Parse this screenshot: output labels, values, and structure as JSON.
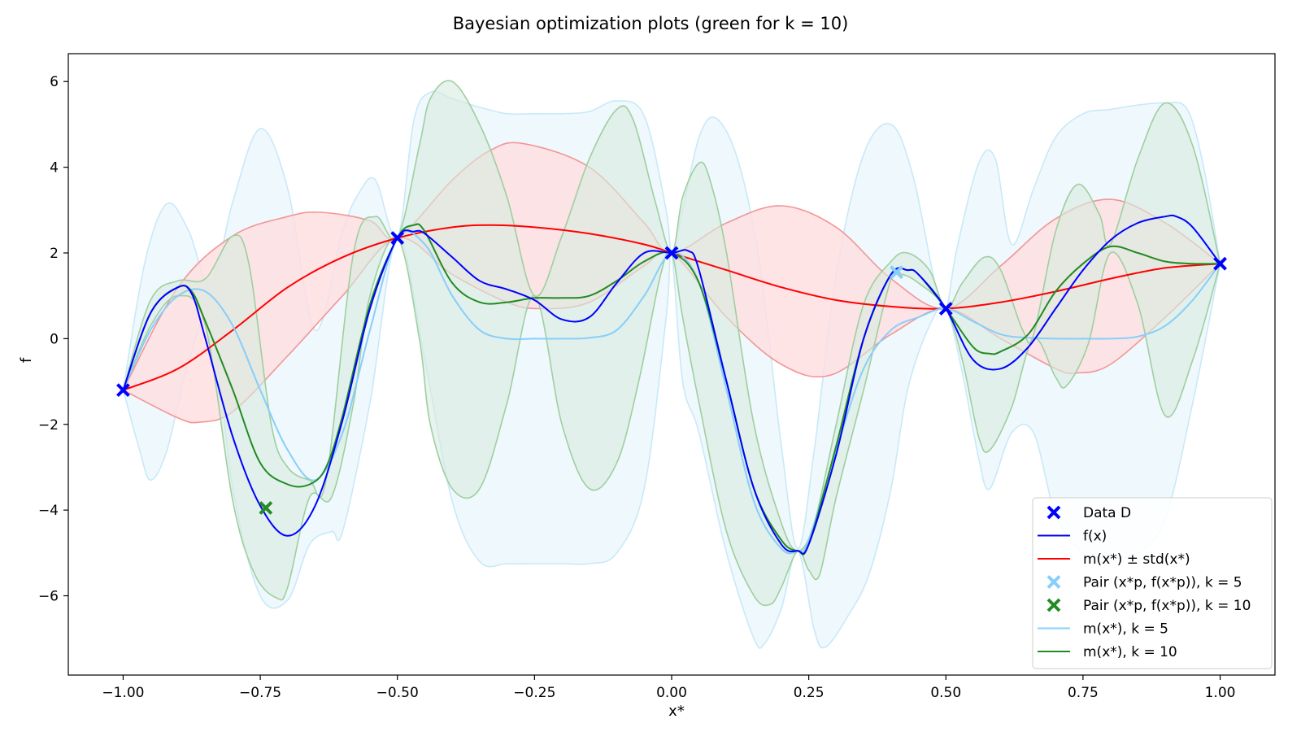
{
  "chart_data": {
    "type": "line",
    "title": "Bayesian optimization plots (green for k = 10)",
    "xlabel": "x*",
    "ylabel": "f",
    "xlim": [
      -1.1,
      1.1
    ],
    "ylim": [
      -7.85,
      6.65
    ],
    "xticks": [
      -1.0,
      -0.75,
      -0.5,
      -0.25,
      0.0,
      0.25,
      0.5,
      0.75,
      1.0
    ],
    "xtick_labels": [
      "−1.00",
      "−0.75",
      "−0.50",
      "−0.25",
      "0.00",
      "0.25",
      "0.50",
      "0.75",
      "1.00"
    ],
    "yticks": [
      -6,
      -4,
      -2,
      0,
      2,
      4,
      6
    ],
    "ytick_labels": [
      "−6",
      "−4",
      "−2",
      "0",
      "2",
      "4",
      "6"
    ],
    "grid": false,
    "legend_position": "bottom-right",
    "colors": {
      "data": "#0000ff",
      "f": "#0000ff",
      "mean": "#ff0000",
      "band": "#ffdde0",
      "band_edge": "#f08080",
      "k5": "#87cefa",
      "k5_band": "#eaf6fc",
      "k5_edge": "#c9e9f8",
      "k10": "#228b22",
      "k10_band": "#d7ebe0",
      "k10_edge": "#9fcf9f"
    },
    "data_points": {
      "name": "Data D",
      "x": [
        -1.0,
        -0.5,
        0.0,
        0.5,
        1.0
      ],
      "y": [
        -1.2,
        2.35,
        2.0,
        0.7,
        1.75
      ]
    },
    "pair_k5": {
      "name": "Pair (x*p, f(x*p)), k = 5",
      "x": [
        0.41
      ],
      "y": [
        1.55
      ]
    },
    "pair_k10": {
      "name": "Pair (x*p, f(x*p)), k = 10",
      "x": [
        -0.74
      ],
      "y": [
        -3.95
      ]
    },
    "series": [
      {
        "id": "f",
        "name": "f(x)",
        "x": [
          -1.0,
          -0.95,
          -0.9,
          -0.875,
          -0.85,
          -0.8,
          -0.75,
          -0.7,
          -0.65,
          -0.6,
          -0.55,
          -0.5,
          -0.47,
          -0.45,
          -0.4,
          -0.35,
          -0.3,
          -0.25,
          -0.2,
          -0.15,
          -0.1,
          -0.05,
          0.0,
          0.03,
          0.05,
          0.1,
          0.15,
          0.2,
          0.23,
          0.25,
          0.3,
          0.35,
          0.4,
          0.43,
          0.45,
          0.5,
          0.55,
          0.6,
          0.65,
          0.7,
          0.75,
          0.8,
          0.85,
          0.9,
          0.92,
          0.95,
          1.0
        ],
        "y": [
          -1.2,
          0.6,
          1.2,
          1.05,
          0.0,
          -2.3,
          -3.9,
          -4.6,
          -3.9,
          -1.9,
          0.7,
          2.35,
          2.5,
          2.45,
          1.9,
          1.35,
          1.15,
          0.9,
          0.45,
          0.5,
          1.3,
          2.0,
          2.0,
          2.05,
          1.6,
          -1.0,
          -3.5,
          -4.8,
          -4.95,
          -4.8,
          -2.7,
          0.0,
          1.5,
          1.6,
          1.5,
          0.7,
          -0.5,
          -0.7,
          -0.2,
          0.7,
          1.6,
          2.3,
          2.7,
          2.85,
          2.85,
          2.6,
          1.75
        ]
      },
      {
        "id": "mean",
        "name": "m(x*) ± std(x*)",
        "x": [
          -1.0,
          -0.9,
          -0.8,
          -0.7,
          -0.6,
          -0.5,
          -0.4,
          -0.33,
          -0.25,
          -0.15,
          -0.05,
          0.0,
          0.1,
          0.2,
          0.3,
          0.4,
          0.5,
          0.6,
          0.7,
          0.8,
          0.9,
          1.0
        ],
        "y": [
          -1.2,
          -0.7,
          0.2,
          1.2,
          1.9,
          2.35,
          2.6,
          2.65,
          2.6,
          2.45,
          2.2,
          2.0,
          1.6,
          1.2,
          0.9,
          0.75,
          0.7,
          0.85,
          1.1,
          1.4,
          1.65,
          1.75
        ]
      },
      {
        "id": "mean_upper",
        "x": [
          -1.0,
          -0.9,
          -0.8,
          -0.7,
          -0.64,
          -0.55,
          -0.5,
          -0.4,
          -0.33,
          -0.27,
          -0.15,
          -0.05,
          0.0,
          0.1,
          0.2,
          0.3,
          0.4,
          0.5,
          0.6,
          0.7,
          0.8,
          0.9,
          1.0
        ],
        "y": [
          -1.2,
          1.2,
          2.4,
          2.85,
          2.95,
          2.75,
          2.35,
          3.7,
          4.4,
          4.55,
          4.0,
          2.7,
          2.0,
          2.7,
          3.1,
          2.6,
          1.4,
          0.7,
          1.7,
          2.8,
          3.25,
          2.7,
          1.75
        ]
      },
      {
        "id": "mean_lower",
        "x": [
          -1.0,
          -0.9,
          -0.86,
          -0.8,
          -0.7,
          -0.6,
          -0.5,
          -0.4,
          -0.3,
          -0.24,
          -0.15,
          -0.05,
          0.0,
          0.1,
          0.2,
          0.29,
          0.4,
          0.5,
          0.6,
          0.7,
          0.74,
          0.8,
          0.9,
          1.0
        ],
        "y": [
          -1.2,
          -1.85,
          -1.95,
          -1.7,
          -0.4,
          1.0,
          2.35,
          1.5,
          0.85,
          0.7,
          0.85,
          1.7,
          2.0,
          0.5,
          -0.6,
          -0.85,
          0.1,
          0.7,
          0.0,
          -0.7,
          -0.8,
          -0.6,
          0.5,
          1.75
        ]
      },
      {
        "id": "k5",
        "name": "m(x*), k = 5",
        "x": [
          -1.0,
          -0.95,
          -0.9,
          -0.85,
          -0.8,
          -0.75,
          -0.7,
          -0.65,
          -0.6,
          -0.55,
          -0.5,
          -0.45,
          -0.4,
          -0.35,
          -0.3,
          -0.25,
          -0.2,
          -0.15,
          -0.1,
          -0.05,
          0.0,
          0.05,
          0.1,
          0.15,
          0.2,
          0.23,
          0.25,
          0.3,
          0.35,
          0.4,
          0.45,
          0.5,
          0.55,
          0.6,
          0.65,
          0.7,
          0.75,
          0.8,
          0.85,
          0.9,
          0.95,
          1.0
        ],
        "y": [
          -1.2,
          0.2,
          1.0,
          1.1,
          0.3,
          -1.2,
          -2.6,
          -3.3,
          -2.2,
          0.2,
          2.35,
          2.2,
          1.0,
          0.2,
          0.0,
          0.0,
          0.0,
          0.02,
          0.2,
          1.0,
          2.0,
          1.3,
          -1.2,
          -3.8,
          -4.9,
          -4.95,
          -4.7,
          -2.6,
          -0.7,
          0.2,
          0.5,
          0.7,
          0.4,
          0.1,
          0.02,
          0.0,
          0.0,
          0.0,
          0.05,
          0.3,
          0.9,
          1.75
        ]
      },
      {
        "id": "k5_upper",
        "x": [
          -1.0,
          -0.96,
          -0.92,
          -0.88,
          -0.84,
          -0.8,
          -0.75,
          -0.7,
          -0.65,
          -0.6,
          -0.57,
          -0.54,
          -0.5,
          -0.47,
          -0.44,
          -0.4,
          -0.35,
          -0.3,
          -0.25,
          -0.2,
          -0.15,
          -0.1,
          -0.05,
          -0.01,
          0.0,
          0.02,
          0.05,
          0.08,
          0.12,
          0.16,
          0.2,
          0.23,
          0.26,
          0.3,
          0.35,
          0.4,
          0.44,
          0.48,
          0.5,
          0.52,
          0.56,
          0.59,
          0.62,
          0.66,
          0.7,
          0.75,
          0.8,
          0.85,
          0.9,
          0.94,
          0.97,
          1.0
        ],
        "y": [
          -1.2,
          1.8,
          3.15,
          2.5,
          1.2,
          3.2,
          4.9,
          3.5,
          0.2,
          2.5,
          3.4,
          3.7,
          2.35,
          5.1,
          5.75,
          5.6,
          5.4,
          5.25,
          5.25,
          5.25,
          5.3,
          5.55,
          5.2,
          3.0,
          2.0,
          3.0,
          4.7,
          5.15,
          4.2,
          1.8,
          -2.5,
          -4.9,
          -2.6,
          1.5,
          4.3,
          5.0,
          3.8,
          1.3,
          0.7,
          2.1,
          4.1,
          4.2,
          2.2,
          3.5,
          4.7,
          5.25,
          5.35,
          5.45,
          5.5,
          5.35,
          4.0,
          1.75
        ]
      },
      {
        "id": "k5_lower",
        "x": [
          -1.0,
          -0.97,
          -0.95,
          -0.92,
          -0.88,
          -0.84,
          -0.8,
          -0.75,
          -0.7,
          -0.66,
          -0.62,
          -0.6,
          -0.55,
          -0.5,
          -0.45,
          -0.4,
          -0.35,
          -0.3,
          -0.25,
          -0.2,
          -0.15,
          -0.1,
          -0.05,
          -0.01,
          0.0,
          0.02,
          0.05,
          0.1,
          0.15,
          0.17,
          0.2,
          0.23,
          0.26,
          0.28,
          0.32,
          0.36,
          0.4,
          0.43,
          0.47,
          0.5,
          0.53,
          0.56,
          0.58,
          0.62,
          0.66,
          0.7,
          0.75,
          0.8,
          0.85,
          0.9,
          0.95,
          1.0
        ],
        "y": [
          -1.2,
          -2.6,
          -3.3,
          -2.6,
          -0.5,
          0.4,
          -3.5,
          -6.0,
          -6.1,
          -4.8,
          -4.5,
          -4.5,
          -1.5,
          2.35,
          -0.5,
          -3.8,
          -5.2,
          -5.25,
          -5.25,
          -5.25,
          -5.25,
          -5.0,
          -3.5,
          0.5,
          2.0,
          -1.0,
          -2.2,
          -5.0,
          -7.0,
          -7.1,
          -6.3,
          -4.95,
          -6.8,
          -7.2,
          -6.5,
          -5.5,
          -3.5,
          -1.2,
          0.3,
          0.7,
          -0.8,
          -2.8,
          -3.5,
          -2.2,
          -2.2,
          -4.1,
          -5.0,
          -5.1,
          -5.0,
          -4.2,
          -1.5,
          1.75
        ]
      },
      {
        "id": "k10",
        "name": "m(x*), k = 10",
        "x": [
          -1.0,
          -0.95,
          -0.9,
          -0.875,
          -0.85,
          -0.8,
          -0.75,
          -0.7,
          -0.66,
          -0.63,
          -0.6,
          -0.55,
          -0.5,
          -0.47,
          -0.45,
          -0.4,
          -0.35,
          -0.3,
          -0.25,
          -0.2,
          -0.15,
          -0.1,
          -0.05,
          0.0,
          0.05,
          0.1,
          0.15,
          0.2,
          0.23,
          0.25,
          0.3,
          0.35,
          0.4,
          0.43,
          0.45,
          0.5,
          0.55,
          0.58,
          0.6,
          0.65,
          0.7,
          0.75,
          0.8,
          0.85,
          0.9,
          0.95,
          1.0
        ],
        "y": [
          -1.2,
          0.6,
          1.2,
          1.1,
          0.4,
          -1.2,
          -2.9,
          -3.4,
          -3.4,
          -3.0,
          -1.8,
          0.8,
          2.35,
          2.65,
          2.5,
          1.3,
          0.85,
          0.85,
          0.95,
          0.95,
          1.0,
          1.35,
          1.8,
          2.0,
          1.3,
          -1.0,
          -3.5,
          -4.7,
          -4.95,
          -4.8,
          -2.5,
          0.0,
          1.5,
          1.6,
          1.5,
          0.7,
          -0.2,
          -0.35,
          -0.3,
          0.1,
          1.1,
          1.75,
          2.15,
          2.0,
          1.8,
          1.75,
          1.75
        ]
      },
      {
        "id": "k10_upper",
        "x": [
          -1.0,
          -0.95,
          -0.9,
          -0.85,
          -0.8,
          -0.77,
          -0.73,
          -0.7,
          -0.66,
          -0.63,
          -0.58,
          -0.54,
          -0.5,
          -0.46,
          -0.44,
          -0.4,
          -0.35,
          -0.3,
          -0.25,
          -0.2,
          -0.15,
          -0.1,
          -0.07,
          -0.03,
          0.0,
          0.02,
          0.05,
          0.07,
          0.1,
          0.15,
          0.2,
          0.23,
          0.26,
          0.3,
          0.35,
          0.4,
          0.43,
          0.47,
          0.5,
          0.53,
          0.57,
          0.6,
          0.64,
          0.66,
          0.7,
          0.74,
          0.78,
          0.8,
          0.85,
          0.9,
          0.95,
          1.0
        ],
        "y": [
          -1.2,
          0.9,
          1.35,
          1.4,
          2.4,
          1.7,
          -2.0,
          -3.0,
          -3.3,
          -3.3,
          2.0,
          2.85,
          2.35,
          4.5,
          5.6,
          6.0,
          5.0,
          3.3,
          1.0,
          2.4,
          4.2,
          5.35,
          5.1,
          3.2,
          2.0,
          3.3,
          4.1,
          3.7,
          2.0,
          -2.0,
          -4.3,
          -4.95,
          -4.3,
          -2.0,
          0.8,
          1.8,
          2.0,
          1.6,
          0.7,
          1.3,
          1.9,
          1.6,
          0.2,
          0.1,
          2.5,
          3.6,
          2.9,
          2.2,
          4.2,
          5.5,
          4.5,
          1.75
        ]
      },
      {
        "id": "k10_lower",
        "x": [
          -1.0,
          -0.95,
          -0.9,
          -0.85,
          -0.8,
          -0.76,
          -0.72,
          -0.7,
          -0.66,
          -0.62,
          -0.58,
          -0.55,
          -0.5,
          -0.46,
          -0.44,
          -0.4,
          -0.35,
          -0.3,
          -0.25,
          -0.2,
          -0.15,
          -0.1,
          -0.06,
          -0.02,
          0.0,
          0.02,
          0.05,
          0.1,
          0.15,
          0.18,
          0.2,
          0.23,
          0.25,
          0.27,
          0.3,
          0.35,
          0.4,
          0.42,
          0.45,
          0.5,
          0.53,
          0.56,
          0.58,
          0.62,
          0.66,
          0.7,
          0.72,
          0.76,
          0.8,
          0.85,
          0.9,
          0.95,
          1.0
        ],
        "y": [
          -1.2,
          0.3,
          1.0,
          0.3,
          -3.8,
          -5.5,
          -6.05,
          -5.8,
          -3.7,
          -3.7,
          -1.5,
          1.0,
          2.35,
          0.0,
          -2.0,
          -3.5,
          -3.5,
          -1.5,
          1.0,
          -2.0,
          -3.5,
          -2.9,
          -1.0,
          1.5,
          2.0,
          0.5,
          -1.5,
          -4.5,
          -6.0,
          -6.2,
          -5.8,
          -4.95,
          -5.4,
          -5.5,
          -3.7,
          -1.2,
          1.4,
          1.5,
          1.3,
          0.7,
          -0.5,
          -2.3,
          -2.6,
          -1.6,
          0.0,
          -0.9,
          -1.1,
          -0.1,
          2.0,
          0.8,
          -1.8,
          -0.5,
          1.75
        ]
      }
    ],
    "legend": [
      {
        "key": "data",
        "label": "Data D"
      },
      {
        "key": "f",
        "label": "f(x)"
      },
      {
        "key": "mean",
        "label": "m(x*) ± std(x*)"
      },
      {
        "key": "pair5",
        "label": "Pair (x*p, f(x*p)), k = 5"
      },
      {
        "key": "pair10",
        "label": "Pair (x*p, f(x*p)), k = 10"
      },
      {
        "key": "k5",
        "label": "m(x*), k = 5"
      },
      {
        "key": "k10",
        "label": "m(x*), k = 10"
      }
    ]
  }
}
